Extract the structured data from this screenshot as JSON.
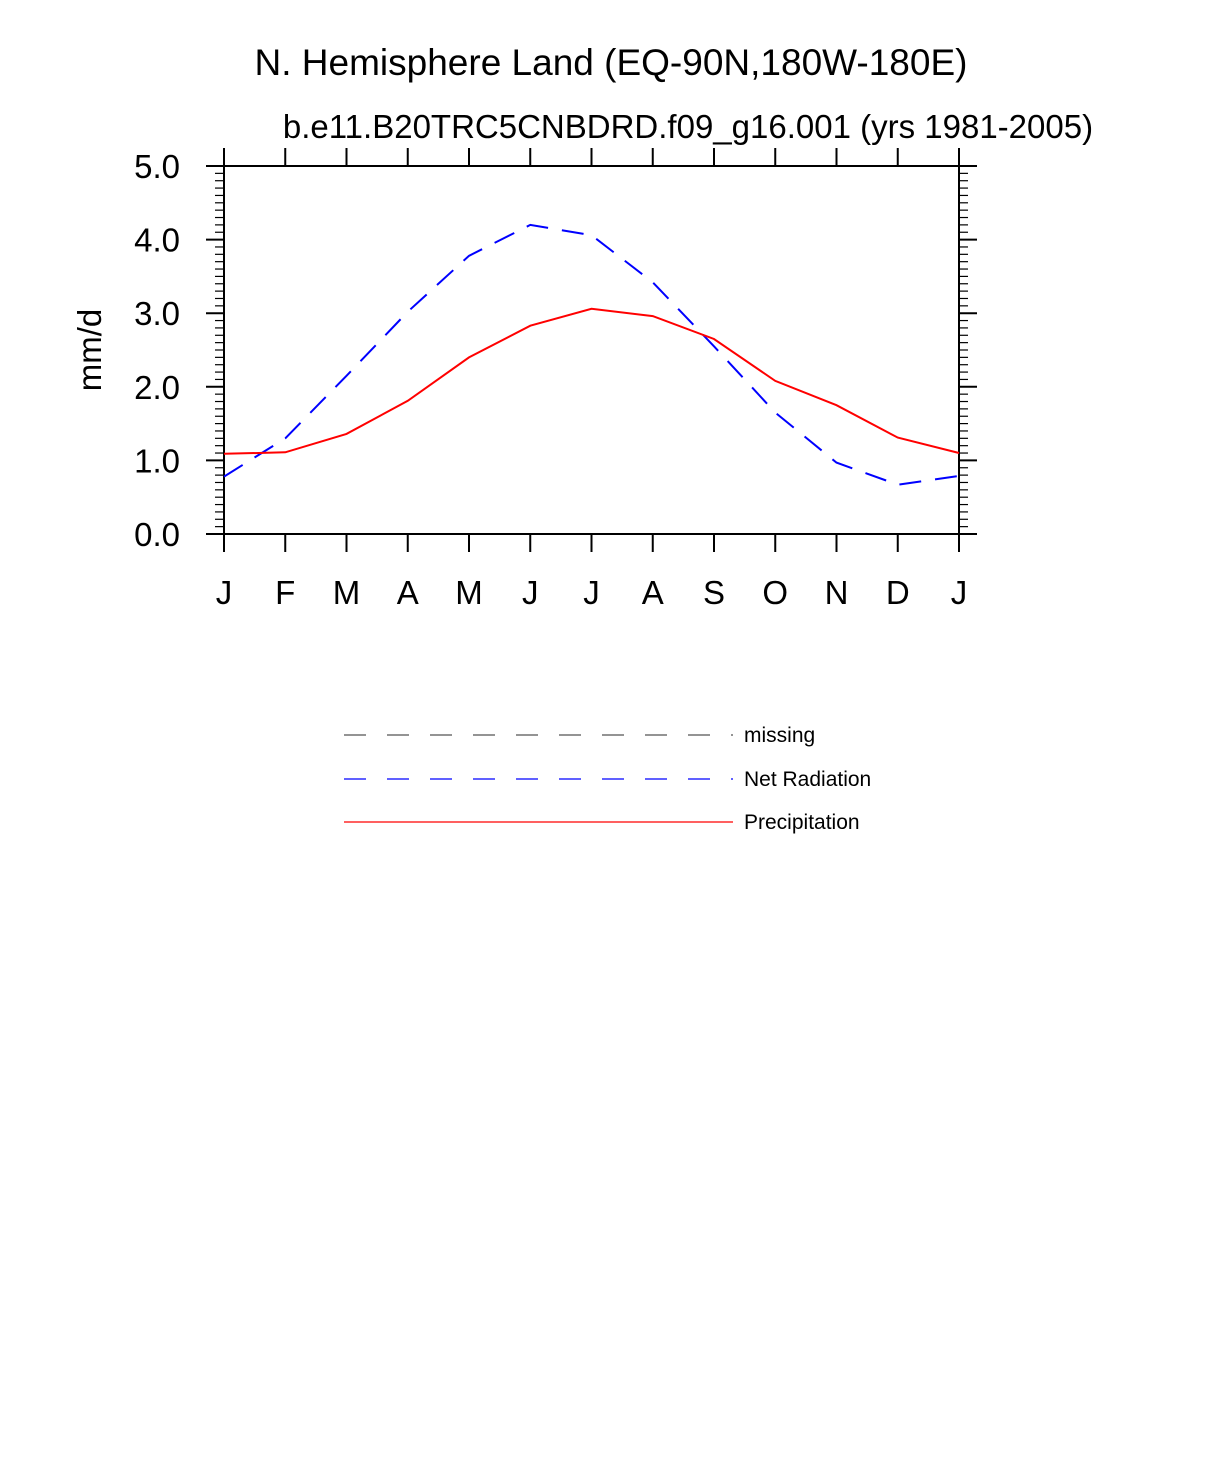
{
  "chart_data": {
    "type": "line",
    "title": "N. Hemisphere Land (EQ-90N,180W-180E)",
    "subtitle": "b.e11.B20TRC5CNBDRD.f09_g16.001 (yrs 1981-2005)",
    "xlabel": "",
    "ylabel": "mm/d",
    "ylim": [
      0,
      5
    ],
    "yticks": [
      "0.0",
      "1.0",
      "2.0",
      "3.0",
      "4.0",
      "5.0"
    ],
    "categories": [
      "J",
      "F",
      "M",
      "A",
      "M",
      "J",
      "J",
      "A",
      "S",
      "O",
      "N",
      "D",
      "J"
    ],
    "series": [
      {
        "name": "Net Radiation",
        "color": "#0000ff",
        "style": "dashed",
        "values": [
          0.78,
          1.3,
          2.15,
          3.02,
          3.78,
          4.2,
          4.06,
          3.42,
          2.55,
          1.65,
          0.97,
          0.67,
          0.79
        ]
      },
      {
        "name": "Precipitation",
        "color": "#ff0000",
        "style": "solid",
        "values": [
          1.09,
          1.11,
          1.36,
          1.81,
          2.4,
          2.83,
          3.06,
          2.96,
          2.65,
          2.08,
          1.75,
          1.31,
          1.1
        ]
      }
    ],
    "legend": [
      {
        "label": "missing",
        "color": "#555555",
        "style": "dashed"
      },
      {
        "label": "Net Radiation",
        "color": "#0000ff",
        "style": "dashed"
      },
      {
        "label": "Precipitation",
        "color": "#ff0000",
        "style": "solid"
      }
    ],
    "legend_position": "bottom-center",
    "grid": false
  }
}
